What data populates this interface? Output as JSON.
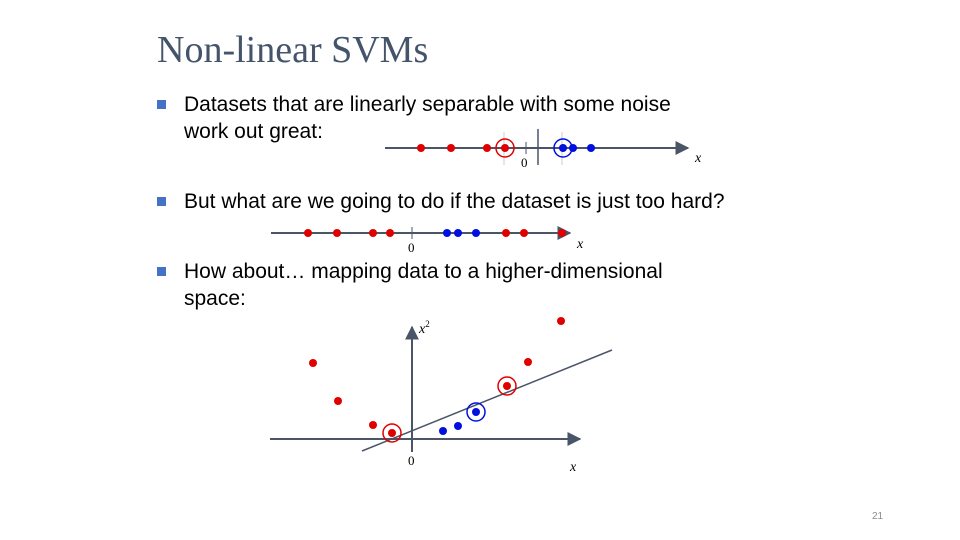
{
  "title": "Non-linear SVMs",
  "bullets": [
    {
      "line1": "Datasets that are linearly separable with some noise",
      "line2": "work out great:"
    },
    {
      "line1": "But what are we going to do if the dataset is just too hard?"
    },
    {
      "line1": "How about… mapping data to a higher-dimensional",
      "line2": "space:"
    }
  ],
  "diagram1": {
    "axis_label": "x",
    "zero_label": "0"
  },
  "diagram2": {
    "axis_label": "x",
    "zero_label": "0"
  },
  "diagram3": {
    "x_label": "x",
    "y_label": "x",
    "y_label_sup": "2",
    "zero_label": "0"
  },
  "page_number": "21",
  "colors": {
    "title": "#44546a",
    "bullet": "#4472c4",
    "axis": "#4a5568",
    "red": "#e00000",
    "blue": "#0010e0"
  }
}
